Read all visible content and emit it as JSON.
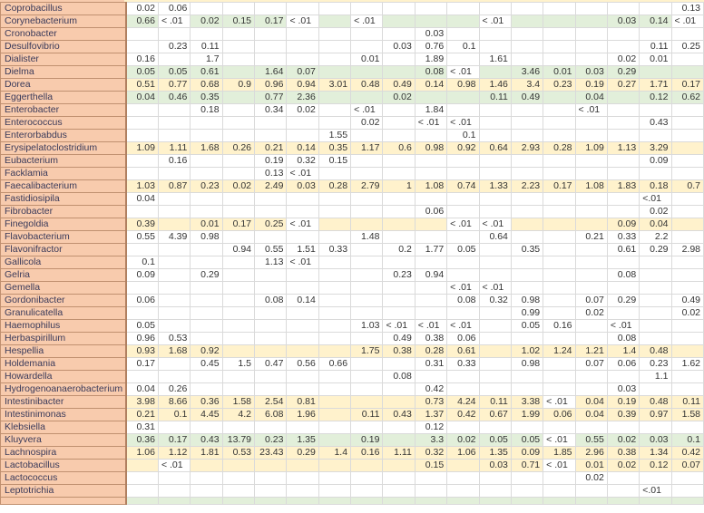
{
  "colors": {
    "name_column": "#F8CBAD",
    "green_highlight": "#E2EFDA",
    "yellow_highlight": "#FFF2CC",
    "grid": "#DADADA"
  },
  "rows": [
    {
      "name": "Coprobacillus",
      "highlight": "none",
      "values": [
        "0.02",
        "0.06",
        "",
        "",
        "",
        "",
        "",
        "",
        "",
        "",
        "",
        "",
        "",
        "",
        "",
        "",
        "",
        "0.13"
      ]
    },
    {
      "name": "Corynebacterium",
      "highlight": "green",
      "values": [
        "0.66",
        "< .01",
        "0.02",
        "0.15",
        "0.17",
        "< .01",
        "",
        "< .01",
        "",
        "",
        "",
        "< .01",
        "",
        "",
        "",
        "0.03",
        "0.14",
        "< .01"
      ]
    },
    {
      "name": "Cronobacter",
      "highlight": "none",
      "values": [
        "",
        "",
        "",
        "",
        "",
        "",
        "",
        "",
        "",
        "0.03",
        "",
        "",
        "",
        "",
        "",
        "",
        "",
        ""
      ]
    },
    {
      "name": "Desulfovibrio",
      "highlight": "none",
      "values": [
        "",
        "0.23",
        "0.11",
        "",
        "",
        "",
        "",
        "",
        "0.03",
        "0.76",
        "0.1",
        "",
        "",
        "",
        "",
        "",
        "0.11",
        "0.25"
      ]
    },
    {
      "name": "Dialister",
      "highlight": "none",
      "values": [
        "0.16",
        "",
        "1.7",
        "",
        "",
        "",
        "",
        "0.01",
        "",
        "1.89",
        "",
        "1.61",
        "",
        "",
        "",
        "0.02",
        "0.01",
        ""
      ]
    },
    {
      "name": "Dielma",
      "highlight": "green",
      "values": [
        "0.05",
        "0.05",
        "0.61",
        "",
        "1.64",
        "0.07",
        "",
        "",
        "",
        "0.08",
        "< .01",
        "",
        "3.46",
        "0.01",
        "0.03",
        "0.29",
        "",
        ""
      ]
    },
    {
      "name": "Dorea",
      "highlight": "yellow",
      "dashed": true,
      "values": [
        "0.51",
        "0.77",
        "0.68",
        "0.9",
        "0.96",
        "0.94",
        "3.01",
        "0.48",
        "0.49",
        "0.14",
        "0.98",
        "1.46",
        "3.4",
        "0.23",
        "0.19",
        "0.27",
        "1.71",
        "0.17"
      ]
    },
    {
      "name": "Eggerthella",
      "highlight": "green",
      "values": [
        "0.04",
        "0.46",
        "0.35",
        "",
        "0.77",
        "2.36",
        "",
        "",
        "0.02",
        "",
        "",
        "0.11",
        "0.49",
        "",
        "0.04",
        "",
        "0.12",
        "0.62"
      ]
    },
    {
      "name": "Enterobacter",
      "highlight": "none",
      "values": [
        "",
        "",
        "0.18",
        "",
        "0.34",
        "0.02",
        "",
        "< .01",
        "",
        "1.84",
        "",
        "",
        "",
        "",
        "< .01",
        "",
        "",
        ""
      ]
    },
    {
      "name": "Enterococcus",
      "highlight": "none",
      "values": [
        "",
        "",
        "",
        "",
        "",
        "",
        "",
        "0.02",
        "",
        "< .01",
        "< .01",
        "",
        "",
        "",
        "",
        "",
        "0.43",
        ""
      ]
    },
    {
      "name": "Enterorbabdus",
      "highlight": "none",
      "values": [
        "",
        "",
        "",
        "",
        "",
        "",
        "1.55",
        "",
        "",
        "",
        "0.1",
        "",
        "",
        "",
        "",
        "",
        "",
        ""
      ]
    },
    {
      "name": "Erysipelatoclostridium",
      "highlight": "yellow",
      "values": [
        "1.09",
        "1.11",
        "1.68",
        "0.26",
        "0.21",
        "0.14",
        "0.35",
        "1.17",
        "0.6",
        "0.98",
        "0.92",
        "0.64",
        "2.93",
        "0.28",
        "1.09",
        "1.13",
        "3.29",
        ""
      ]
    },
    {
      "name": "Eubacterium",
      "highlight": "none",
      "values": [
        "",
        "0.16",
        "",
        "",
        "0.19",
        "0.32",
        "0.15",
        "",
        "",
        "",
        "",
        "",
        "",
        "",
        "",
        "",
        "0.09",
        ""
      ]
    },
    {
      "name": "Facklamia",
      "highlight": "none",
      "values": [
        "",
        "",
        "",
        "",
        "0.13",
        "< .01",
        "",
        "",
        "",
        "",
        "",
        "",
        "",
        "",
        "",
        "",
        "",
        ""
      ]
    },
    {
      "name": "Faecalibacterium",
      "highlight": "yellow",
      "values": [
        "1.03",
        "0.87",
        "0.23",
        "0.02",
        "2.49",
        "0.03",
        "0.28",
        "2.79",
        "1",
        "1.08",
        "0.74",
        "1.33",
        "2.23",
        "0.17",
        "1.08",
        "1.83",
        "0.18",
        "0.7"
      ]
    },
    {
      "name": "Fastidiosipila",
      "highlight": "none",
      "values": [
        "0.04",
        "",
        "",
        "",
        "",
        "",
        "",
        "",
        "",
        "",
        "",
        "",
        "",
        "",
        "",
        "",
        "<.01",
        ""
      ]
    },
    {
      "name": "Fibrobacter",
      "highlight": "none",
      "values": [
        "",
        "",
        "",
        "",
        "",
        "",
        "",
        "",
        "",
        "0.06",
        "",
        "",
        "",
        "",
        "",
        "",
        "0.02",
        ""
      ]
    },
    {
      "name": "Finegoldia",
      "highlight": "yellow",
      "values": [
        "0.39",
        "",
        "0.01",
        "0.17",
        "0.25",
        "< .01",
        "",
        "",
        "",
        "",
        "< .01",
        "< .01",
        "",
        "",
        "",
        "0.09",
        "0.04",
        ""
      ]
    },
    {
      "name": "Flavobacterium",
      "highlight": "none",
      "values": [
        "0.55",
        "4.39",
        "0.98",
        "",
        "",
        "",
        "",
        "1.48",
        "",
        "",
        "",
        "0.64",
        "",
        "",
        "0.21",
        "0.33",
        "2.2",
        ""
      ]
    },
    {
      "name": "Flavonifractor",
      "highlight": "none",
      "values": [
        "",
        "",
        "",
        "0.94",
        "0.55",
        "1.51",
        "0.33",
        "",
        "0.2",
        "1.77",
        "0.05",
        "",
        "0.35",
        "",
        "",
        "0.61",
        "0.29",
        "2.98"
      ]
    },
    {
      "name": "Gallicola",
      "highlight": "none",
      "values": [
        "0.1",
        "",
        "",
        "",
        "1.13",
        "< .01",
        "",
        "",
        "",
        "",
        "",
        "",
        "",
        "",
        "",
        "",
        "",
        ""
      ]
    },
    {
      "name": "Gelria",
      "highlight": "none",
      "values": [
        "0.09",
        "",
        "0.29",
        "",
        "",
        "",
        "",
        "",
        "0.23",
        "0.94",
        "",
        "",
        "",
        "",
        "",
        "0.08",
        "",
        ""
      ]
    },
    {
      "name": "Gemella",
      "highlight": "none",
      "values": [
        "",
        "",
        "",
        "",
        "",
        "",
        "",
        "",
        "",
        "",
        "< .01",
        "< .01",
        "",
        "",
        "",
        "",
        "",
        ""
      ]
    },
    {
      "name": "Gordonibacter",
      "highlight": "none",
      "values": [
        "0.06",
        "",
        "",
        "",
        "0.08",
        "0.14",
        "",
        "",
        "",
        "",
        "0.08",
        "0.32",
        "0.98",
        "",
        "0.07",
        "0.29",
        "",
        "0.49"
      ]
    },
    {
      "name": "Granulicatella",
      "highlight": "none",
      "values": [
        "",
        "",
        "",
        "",
        "",
        "",
        "",
        "",
        "",
        "",
        "",
        "",
        "0.99",
        "",
        "0.02",
        "",
        "",
        "0.02"
      ]
    },
    {
      "name": "Haemophilus",
      "highlight": "none",
      "values": [
        "0.05",
        "",
        "",
        "",
        "",
        "",
        "",
        "1.03",
        "< .01",
        "< .01",
        "< .01",
        "",
        "0.05",
        "0.16",
        "",
        "< .01",
        "",
        ""
      ]
    },
    {
      "name": "Herbaspirillum",
      "highlight": "none",
      "values": [
        "0.96",
        "0.53",
        "",
        "",
        "",
        "",
        "",
        "",
        "0.49",
        "0.38",
        "0.06",
        "",
        "",
        "",
        "",
        "0.08",
        "",
        ""
      ]
    },
    {
      "name": "Hespellia",
      "highlight": "yellow",
      "values": [
        "0.93",
        "1.68",
        "0.92",
        "",
        "",
        "",
        "",
        "1.75",
        "0.38",
        "0.28",
        "0.61",
        "",
        "1.02",
        "1.24",
        "1.21",
        "1.4",
        "0.48",
        ""
      ]
    },
    {
      "name": "Holdemania",
      "highlight": "none",
      "values": [
        "0.17",
        "",
        "0.45",
        "1.5",
        "0.47",
        "0.56",
        "0.66",
        "",
        "",
        "0.31",
        "0.33",
        "",
        "0.98",
        "",
        "0.07",
        "0.06",
        "0.23",
        "1.62"
      ]
    },
    {
      "name": "Howardella",
      "highlight": "none",
      "values": [
        "",
        "",
        "",
        "",
        "",
        "",
        "",
        "",
        "0.08",
        "",
        "",
        "",
        "",
        "",
        "",
        "",
        "1.1",
        ""
      ]
    },
    {
      "name": "Hydrogenoanaerobacterium",
      "highlight": "none",
      "values": [
        "0.04",
        "0.26",
        "",
        "",
        "",
        "",
        "",
        "",
        "",
        "0.42",
        "",
        "",
        "",
        "",
        "",
        "0.03",
        "",
        ""
      ]
    },
    {
      "name": "Intestinibacter",
      "highlight": "yellow",
      "values": [
        "3.98",
        "8.66",
        "0.36",
        "1.58",
        "2.54",
        "0.81",
        "",
        "",
        "",
        "0.73",
        "4.24",
        "0.11",
        "3.38",
        "< .01",
        "0.04",
        "0.19",
        "0.48",
        "0.11"
      ]
    },
    {
      "name": "Intestinimonas",
      "highlight": "yellow",
      "values": [
        "0.21",
        "0.1",
        "4.45",
        "4.2",
        "6.08",
        "1.96",
        "",
        "0.11",
        "0.43",
        "1.37",
        "0.42",
        "0.67",
        "1.99",
        "0.06",
        "0.04",
        "0.39",
        "0.97",
        "1.58"
      ]
    },
    {
      "name": "Klebsiella",
      "highlight": "none",
      "values": [
        "0.31",
        "",
        "",
        "",
        "",
        "",
        "",
        "",
        "",
        "0.12",
        "",
        "",
        "",
        "",
        "",
        "",
        "",
        ""
      ]
    },
    {
      "name": "Kluyvera",
      "highlight": "green",
      "values": [
        "0.36",
        "0.17",
        "0.43",
        "13.79",
        "0.23",
        "1.35",
        "",
        "0.19",
        "",
        "3.3",
        "0.02",
        "0.05",
        "0.05",
        "< .01",
        "0.55",
        "0.02",
        "0.03",
        "0.1"
      ]
    },
    {
      "name": "Lachnospira",
      "highlight": "yellow",
      "values": [
        "1.06",
        "1.12",
        "1.81",
        "0.53",
        "23.43",
        "0.29",
        "1.4",
        "0.16",
        "1.11",
        "0.32",
        "1.06",
        "1.35",
        "0.09",
        "1.85",
        "2.96",
        "0.38",
        "1.34",
        "0.42"
      ]
    },
    {
      "name": "Lactobacillus",
      "highlight": "yellow",
      "values": [
        "",
        "< .01",
        "",
        "",
        "",
        "",
        "",
        "",
        "",
        "0.15",
        "",
        "0.03",
        "0.71",
        "< .01",
        "0.01",
        "0.02",
        "0.12",
        "0.07"
      ]
    },
    {
      "name": "Lactococcus",
      "highlight": "none",
      "values": [
        "",
        "",
        "",
        "",
        "",
        "",
        "",
        "",
        "",
        "",
        "",
        "",
        "",
        "",
        "0.02",
        "",
        "",
        ""
      ]
    },
    {
      "name": "Leptotrichia",
      "highlight": "none",
      "values": [
        "",
        "",
        "",
        "",
        "",
        "",
        "",
        "",
        "",
        "",
        "",
        "",
        "",
        "",
        "",
        "",
        "<.01",
        ""
      ]
    }
  ]
}
